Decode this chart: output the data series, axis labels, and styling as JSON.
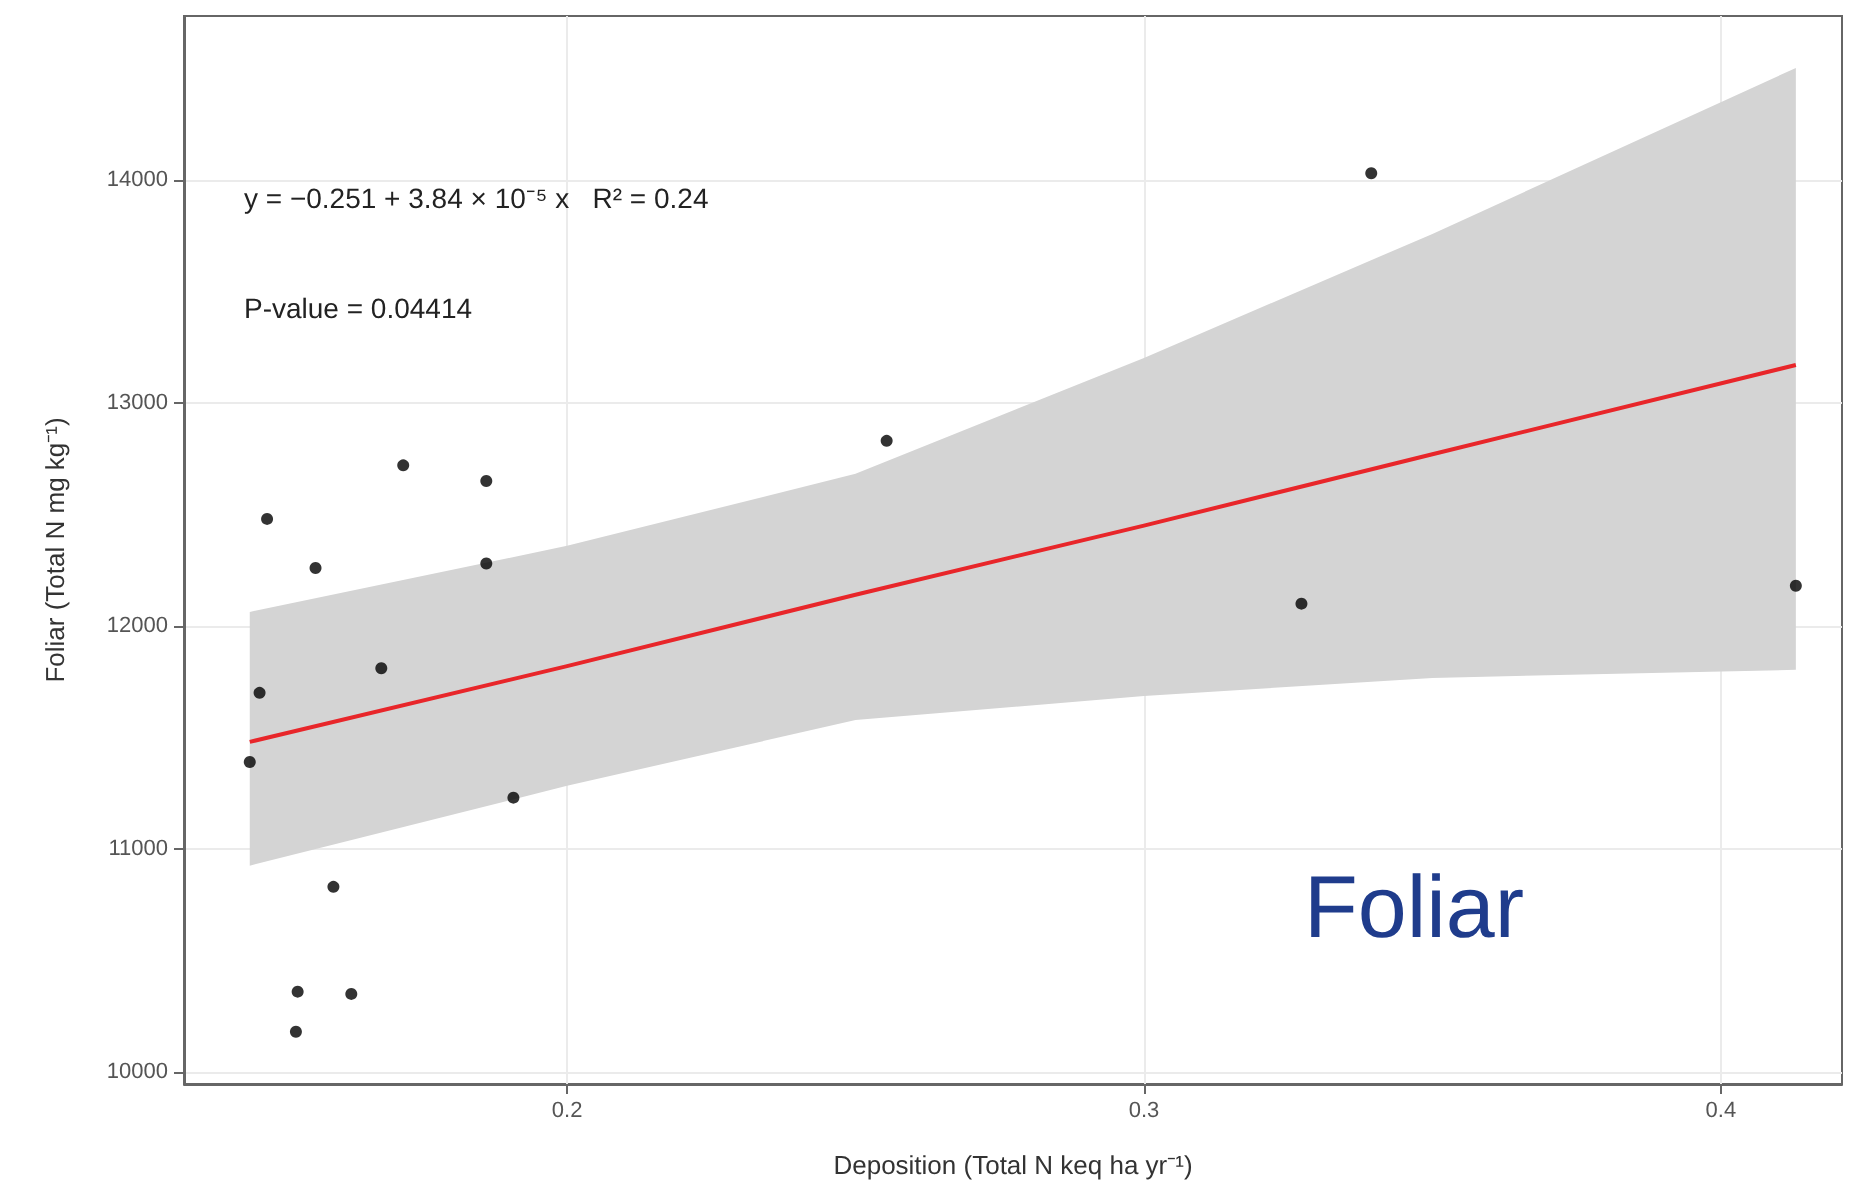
{
  "chart_data": {
    "type": "scatter",
    "xlabel": "Deposition (Total N keq ha yr⁻¹)",
    "ylabel": "Foliar (Total N mg kg⁻¹)",
    "xlim": [
      0.1336,
      0.421
    ],
    "ylim": [
      9946,
      14735
    ],
    "xticks": [
      0.2,
      0.3,
      0.4
    ],
    "yticks": [
      10000,
      11000,
      12000,
      13000,
      14000
    ],
    "grid": true,
    "annotations": [
      "y = −0.251 + 3.84 × 10⁻⁵ x   R² = 0.24",
      "P-value = 0.04414",
      "Foliar"
    ],
    "series": [
      {
        "color": "#000000",
        "marker": "circle",
        "x": [
          0.145,
          0.1467,
          0.148,
          0.1533,
          0.153,
          0.1564,
          0.1595,
          0.1626,
          0.1678,
          0.1716,
          0.186,
          0.186,
          0.1907,
          0.2554,
          0.3273,
          0.3394,
          0.413
        ],
        "values": [
          11390,
          11700,
          12480,
          10360,
          10180,
          12260,
          10830,
          10350,
          11810,
          12720,
          12650,
          12280,
          11230,
          12830,
          12100,
          14030,
          12180
        ]
      },
      {
        "type": "line",
        "color": "#e8262a",
        "marker": "none",
        "x": [
          0.145,
          0.2,
          0.25,
          0.3,
          0.35,
          0.413
        ],
        "values": [
          11480,
          11820,
          12140,
          12450,
          12770,
          13170
        ],
        "lower": [
          10925,
          11283,
          11578,
          11686,
          11767,
          11803
        ],
        "upper": [
          12063,
          12359,
          12682,
          13202,
          13758,
          14502
        ]
      }
    ]
  }
}
